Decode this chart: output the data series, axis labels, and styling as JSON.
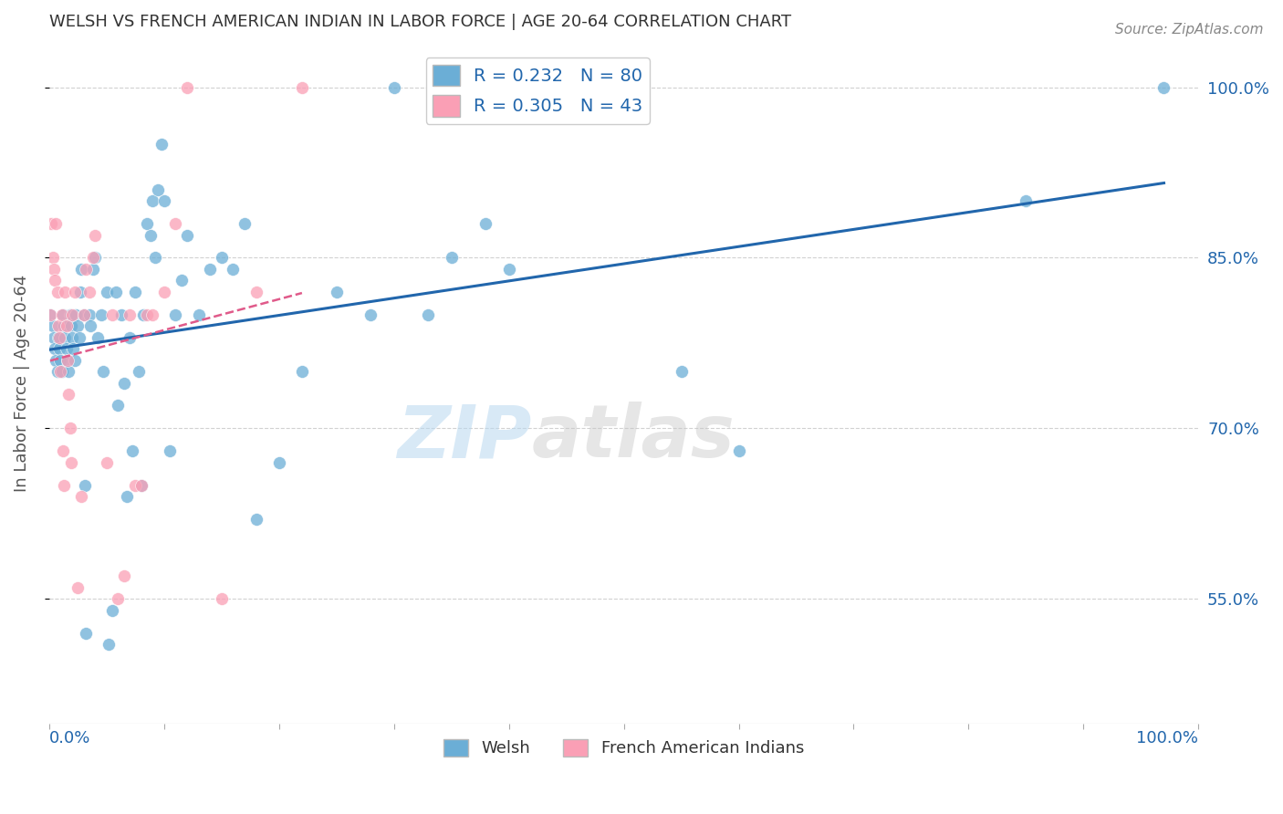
{
  "title": "WELSH VS FRENCH AMERICAN INDIAN IN LABOR FORCE | AGE 20-64 CORRELATION CHART",
  "source": "Source: ZipAtlas.com",
  "ylabel": "In Labor Force | Age 20-64",
  "watermark_zip": "ZIP",
  "watermark_atlas": "atlas",
  "welsh_R": 0.232,
  "welsh_N": 80,
  "french_R": 0.305,
  "french_N": 43,
  "welsh_color": "#6baed6",
  "french_color": "#fa9fb5",
  "welsh_line_color": "#2166ac",
  "french_line_color": "#e05a8a",
  "background_color": "#ffffff",
  "grid_color": "#cccccc",
  "welsh_x": [
    0.001,
    0.003,
    0.004,
    0.005,
    0.006,
    0.007,
    0.008,
    0.009,
    0.01,
    0.011,
    0.012,
    0.013,
    0.014,
    0.015,
    0.016,
    0.017,
    0.018,
    0.019,
    0.02,
    0.021,
    0.022,
    0.023,
    0.025,
    0.026,
    0.027,
    0.028,
    0.03,
    0.031,
    0.032,
    0.035,
    0.036,
    0.038,
    0.04,
    0.042,
    0.045,
    0.047,
    0.05,
    0.052,
    0.055,
    0.058,
    0.06,
    0.063,
    0.065,
    0.068,
    0.07,
    0.072,
    0.075,
    0.078,
    0.08,
    0.082,
    0.085,
    0.088,
    0.09,
    0.092,
    0.095,
    0.098,
    0.1,
    0.105,
    0.11,
    0.115,
    0.12,
    0.13,
    0.14,
    0.15,
    0.16,
    0.17,
    0.18,
    0.2,
    0.22,
    0.25,
    0.28,
    0.3,
    0.33,
    0.35,
    0.38,
    0.4,
    0.55,
    0.6,
    0.85,
    0.97
  ],
  "welsh_y": [
    0.8,
    0.79,
    0.78,
    0.77,
    0.76,
    0.75,
    0.78,
    0.77,
    0.76,
    0.75,
    0.8,
    0.79,
    0.78,
    0.77,
    0.76,
    0.75,
    0.8,
    0.79,
    0.78,
    0.77,
    0.76,
    0.8,
    0.79,
    0.78,
    0.82,
    0.84,
    0.8,
    0.65,
    0.52,
    0.8,
    0.79,
    0.84,
    0.85,
    0.78,
    0.8,
    0.75,
    0.82,
    0.51,
    0.54,
    0.82,
    0.72,
    0.8,
    0.74,
    0.64,
    0.78,
    0.68,
    0.82,
    0.75,
    0.65,
    0.8,
    0.88,
    0.87,
    0.9,
    0.85,
    0.91,
    0.95,
    0.9,
    0.68,
    0.8,
    0.83,
    0.87,
    0.8,
    0.84,
    0.85,
    0.84,
    0.88,
    0.62,
    0.67,
    0.75,
    0.82,
    0.8,
    1.0,
    0.8,
    0.85,
    0.88,
    0.84,
    0.75,
    0.68,
    0.9,
    1.0
  ],
  "french_x": [
    0.001,
    0.002,
    0.003,
    0.004,
    0.005,
    0.006,
    0.007,
    0.008,
    0.009,
    0.01,
    0.011,
    0.012,
    0.013,
    0.014,
    0.015,
    0.016,
    0.017,
    0.018,
    0.019,
    0.02,
    0.022,
    0.025,
    0.028,
    0.03,
    0.032,
    0.035,
    0.038,
    0.04,
    0.05,
    0.055,
    0.06,
    0.065,
    0.07,
    0.075,
    0.08,
    0.085,
    0.09,
    0.1,
    0.11,
    0.12,
    0.15,
    0.18,
    0.22
  ],
  "french_y": [
    0.8,
    0.88,
    0.85,
    0.84,
    0.83,
    0.88,
    0.82,
    0.79,
    0.78,
    0.75,
    0.8,
    0.68,
    0.65,
    0.82,
    0.79,
    0.76,
    0.73,
    0.7,
    0.67,
    0.8,
    0.82,
    0.56,
    0.64,
    0.8,
    0.84,
    0.82,
    0.85,
    0.87,
    0.67,
    0.8,
    0.55,
    0.57,
    0.8,
    0.65,
    0.65,
    0.8,
    0.8,
    0.82,
    0.88,
    1.0,
    0.55,
    0.82,
    1.0
  ],
  "ytick_labels": [
    "55.0%",
    "70.0%",
    "85.0%",
    "100.0%"
  ],
  "ytick_values": [
    0.55,
    0.7,
    0.85,
    1.0
  ],
  "xlim": [
    0.0,
    1.0
  ],
  "ylim": [
    0.44,
    1.04
  ]
}
